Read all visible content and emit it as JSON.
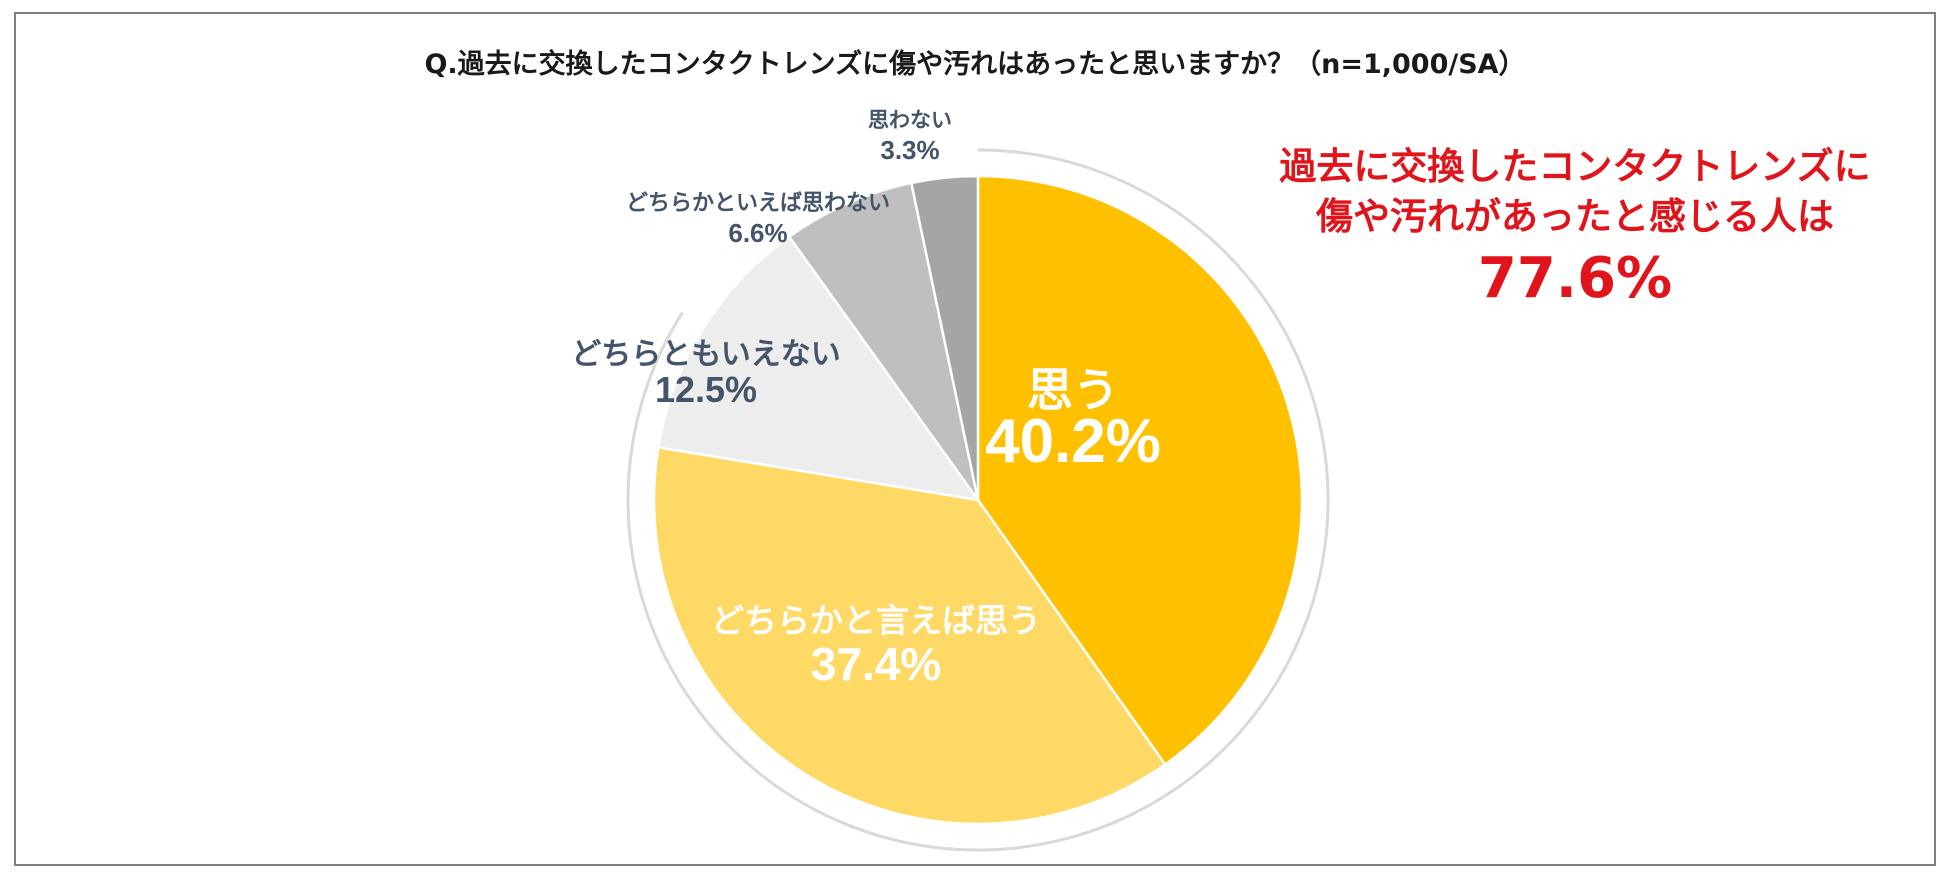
{
  "title": "Q.過去に交換したコンタクトレンズに傷や汚れはあったと思いますか？（n=1,000/SA）",
  "callout": {
    "line1": "過去に交換したコンタクトレンズに",
    "line2": "傷や汚れがあったと感じる人は",
    "value": "77.6%"
  },
  "colors": {
    "callout": "#e0141b",
    "inside_label": "#ffffff",
    "outside_label": "#44546a",
    "ring": "#d9d9d9"
  },
  "chart_data": {
    "type": "pie",
    "title": "Q.過去に交換したコンタクトレンズに傷や汚れはあったと思いますか？（n=1,000/SA）",
    "start": "12 o'clock, clockwise",
    "slices": [
      {
        "label": "思う",
        "value": 40.2,
        "value_label": "40.2%",
        "color": "#ffc000",
        "label_position": "inside"
      },
      {
        "label": "どちらかと言えば思う",
        "value": 37.4,
        "value_label": "37.4%",
        "color": "#ffd966",
        "label_position": "inside"
      },
      {
        "label": "どちらともいえない",
        "value": 12.5,
        "value_label": "12.5%",
        "color": "#ededed",
        "label_position": "outside"
      },
      {
        "label": "どちらかといえば思わない",
        "value": 6.6,
        "value_label": "6.6%",
        "color": "#bfbfbf",
        "label_position": "outside"
      },
      {
        "label": "思わない",
        "value": 3.3,
        "value_label": "3.3%",
        "color": "#a5a5a5",
        "label_position": "outside"
      }
    ]
  }
}
